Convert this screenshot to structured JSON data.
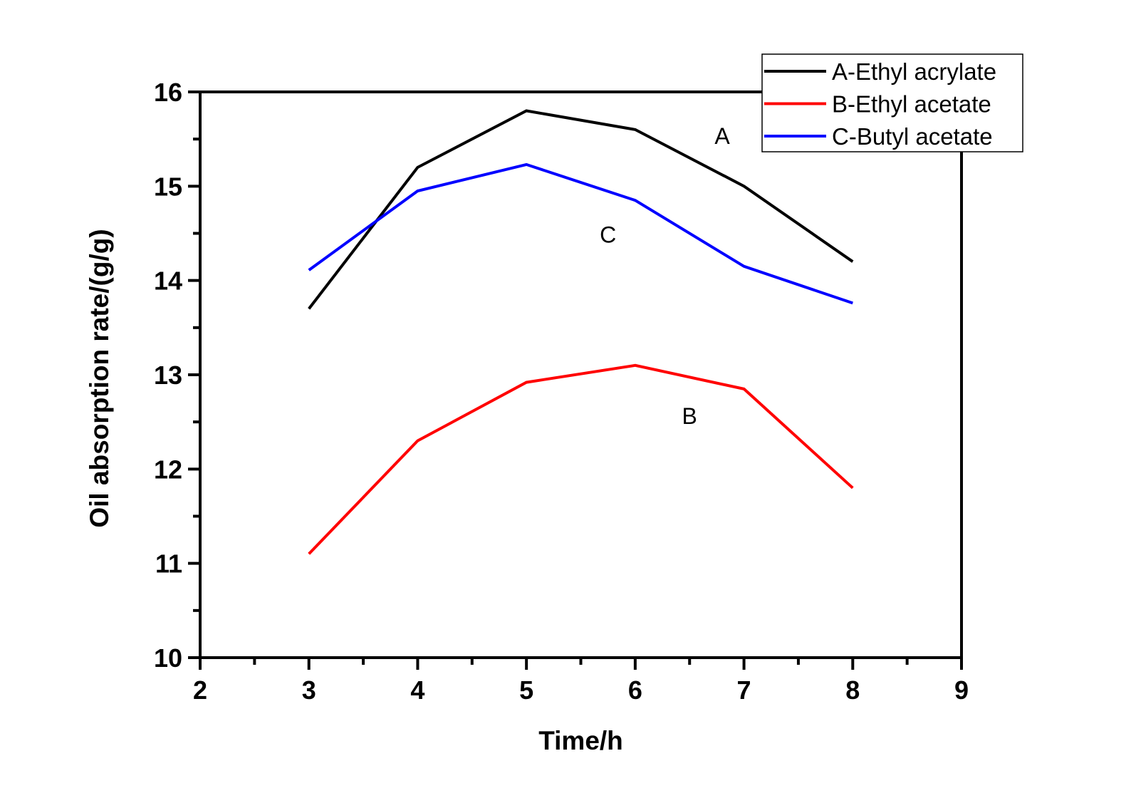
{
  "chart_data": {
    "type": "line",
    "title": "",
    "xlabel": "Time/h",
    "ylabel": "Oil absorption rate/(g/g)",
    "xlim": [
      2,
      9
    ],
    "ylim": [
      10,
      16
    ],
    "x_ticks": [
      2,
      3,
      4,
      5,
      6,
      7,
      8,
      9
    ],
    "x_tick_labels": [
      "2",
      "3",
      "4",
      "5",
      "6",
      "7",
      "8",
      "9"
    ],
    "y_ticks": [
      10,
      11,
      12,
      13,
      14,
      15,
      16
    ],
    "y_tick_labels": [
      "10",
      "11",
      "12",
      "13",
      "14",
      "15",
      "16"
    ],
    "grid": false,
    "legend_position": "top-right",
    "x": [
      3,
      4,
      5,
      6,
      7,
      8
    ],
    "series": [
      {
        "name": "A-Ethyl acrylate",
        "color": "#000000",
        "values": [
          13.7,
          15.2,
          15.8,
          15.6,
          15.0,
          14.2
        ]
      },
      {
        "name": "B-Ethyl acetate",
        "color": "#ff0000",
        "values": [
          11.1,
          12.3,
          12.92,
          13.1,
          12.85,
          11.8
        ]
      },
      {
        "name": "C-Butyl acetate",
        "color": "#0000ff",
        "values": [
          14.11,
          14.95,
          15.23,
          14.85,
          14.15,
          13.76
        ]
      }
    ],
    "annotations": [
      {
        "text": "A",
        "x": 6.8,
        "y": 15.45
      },
      {
        "text": "C",
        "x": 5.75,
        "y": 14.4
      },
      {
        "text": "B",
        "x": 6.5,
        "y": 12.48
      }
    ]
  }
}
